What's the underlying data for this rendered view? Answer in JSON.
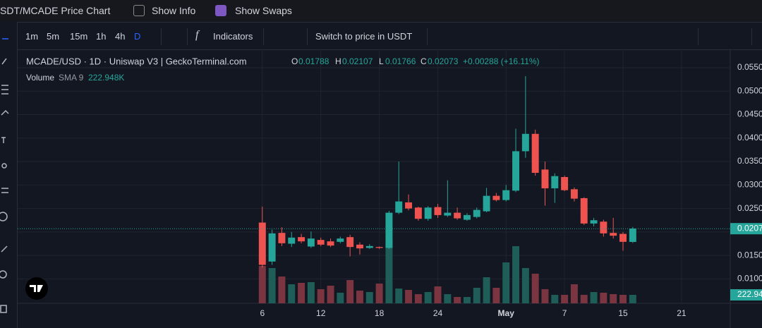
{
  "header": {
    "title": "SDT/MCADE Price Chart",
    "show_info": "Show Info",
    "show_swaps": "Show Swaps"
  },
  "toolbar": {
    "intervals": [
      "1m",
      "5m",
      "15m",
      "1h",
      "4h",
      "D"
    ],
    "indicators": "Indicators",
    "switch": "Switch to price in USDT"
  },
  "legend": {
    "symbol": "MCADE/USD · 1D · Uniswap V3 | GeckoTerminal.com",
    "o_label": "O",
    "o": "0.01788",
    "h_label": "H",
    "h": "0.02107",
    "l_label": "L",
    "l": "0.01766",
    "c_label": "C",
    "c": "0.02073",
    "change": "+0.00288 (+16.11%)",
    "volume": "Volume",
    "sma": "SMA 9",
    "volume_value": "222.948K"
  },
  "chart_data": {
    "type": "candlestick",
    "x": [
      0,
      1,
      2,
      3,
      4,
      5,
      6,
      7,
      8,
      9,
      10,
      11,
      12,
      13,
      14,
      15,
      16,
      17,
      18,
      19,
      20,
      21,
      22,
      23,
      24,
      25,
      26,
      27,
      28,
      29,
      30,
      31,
      32,
      33,
      34,
      35,
      36,
      37,
      38
    ],
    "open": [
      0.022,
      0.0137,
      0.0198,
      0.0175,
      0.0189,
      0.0169,
      0.0183,
      0.018,
      0.0179,
      0.0189,
      0.0173,
      0.0166,
      0.0168,
      0.0166,
      0.0241,
      0.0263,
      0.0252,
      0.0228,
      0.0253,
      0.0235,
      0.0241,
      0.0226,
      0.0232,
      0.0244,
      0.0277,
      0.0268,
      0.0288,
      0.0372,
      0.0409,
      0.0333,
      0.0293,
      0.0317,
      0.0291,
      0.0272,
      0.0218,
      0.0222,
      0.0198,
      0.0196,
      0.01788
    ],
    "high": [
      0.0254,
      0.0205,
      0.021,
      0.02,
      0.0196,
      0.0201,
      0.0188,
      0.0186,
      0.019,
      0.0194,
      0.0178,
      0.0174,
      0.0169,
      0.0245,
      0.035,
      0.028,
      0.0254,
      0.0255,
      0.026,
      0.031,
      0.0252,
      0.024,
      0.0252,
      0.0294,
      0.0283,
      0.03,
      0.042,
      0.0532,
      0.0418,
      0.035,
      0.0325,
      0.032,
      0.0295,
      0.0274,
      0.023,
      0.0226,
      0.023,
      0.02,
      0.02107
    ],
    "low": [
      0.0124,
      0.013,
      0.017,
      0.0168,
      0.0176,
      0.0166,
      0.017,
      0.0168,
      0.0176,
      0.0148,
      0.0152,
      0.0164,
      0.0164,
      0.0164,
      0.0238,
      0.0246,
      0.0224,
      0.0224,
      0.023,
      0.0232,
      0.0226,
      0.0224,
      0.0229,
      0.0242,
      0.0265,
      0.0265,
      0.0285,
      0.0358,
      0.032,
      0.0256,
      0.0262,
      0.0287,
      0.0265,
      0.0215,
      0.0212,
      0.019,
      0.0186,
      0.016,
      0.01766
    ],
    "close": [
      0.013,
      0.0197,
      0.0176,
      0.0188,
      0.018,
      0.0186,
      0.0173,
      0.0171,
      0.0186,
      0.0168,
      0.0165,
      0.017,
      0.0166,
      0.0241,
      0.0265,
      0.025,
      0.0228,
      0.0252,
      0.0236,
      0.0241,
      0.0229,
      0.0236,
      0.0247,
      0.0277,
      0.0268,
      0.0289,
      0.0372,
      0.0409,
      0.0326,
      0.0293,
      0.0319,
      0.0289,
      0.0271,
      0.0218,
      0.0225,
      0.0197,
      0.0192,
      0.0179,
      0.02073
    ],
    "volume": [
      985000,
      929000,
      706000,
      502000,
      539000,
      557000,
      372000,
      464000,
      279000,
      613000,
      334000,
      297000,
      520000,
      1654000,
      390000,
      353000,
      242000,
      297000,
      446000,
      242000,
      167000,
      167000,
      409000,
      687000,
      409000,
      1078000,
      1505000,
      929000,
      780000,
      372000,
      223000,
      223000,
      502000,
      223000,
      297000,
      279000,
      242000,
      223000,
      222948
    ],
    "xlim": [
      -25.1,
      48.0
    ],
    "xticks": [
      {
        "value": 0,
        "label": "6"
      },
      {
        "value": 6,
        "label": "12"
      },
      {
        "value": 12,
        "label": "18"
      },
      {
        "value": 18,
        "label": "24"
      },
      {
        "value": 25,
        "label": "May"
      },
      {
        "value": 31,
        "label": "7"
      },
      {
        "value": 37,
        "label": "15"
      },
      {
        "value": 43,
        "label": "21"
      }
    ],
    "ylim": [
      0.0048,
      0.0589
    ],
    "yticks": [
      {
        "value": 0.01,
        "label": "0.0100"
      },
      {
        "value": 0.015,
        "label": "0.0150"
      },
      {
        "value": 0.02,
        "label": "0.0200"
      },
      {
        "value": 0.025,
        "label": "0.0250"
      },
      {
        "value": 0.03,
        "label": "0.0300"
      },
      {
        "value": 0.035,
        "label": "0.0350"
      },
      {
        "value": 0.04,
        "label": "0.0400"
      },
      {
        "value": 0.045,
        "label": "0.0450"
      },
      {
        "value": 0.05,
        "label": "0.0500"
      },
      {
        "value": 0.055,
        "label": "0.0550"
      }
    ],
    "last_price": {
      "value": 0.0207,
      "label": "0.0207"
    },
    "last_volume_label": "222.94",
    "up_color": "#26a69a",
    "down_color": "#ef5350",
    "up_volume_color": "#1f5e58",
    "down_volume_color": "#7a3540",
    "grid": true
  }
}
